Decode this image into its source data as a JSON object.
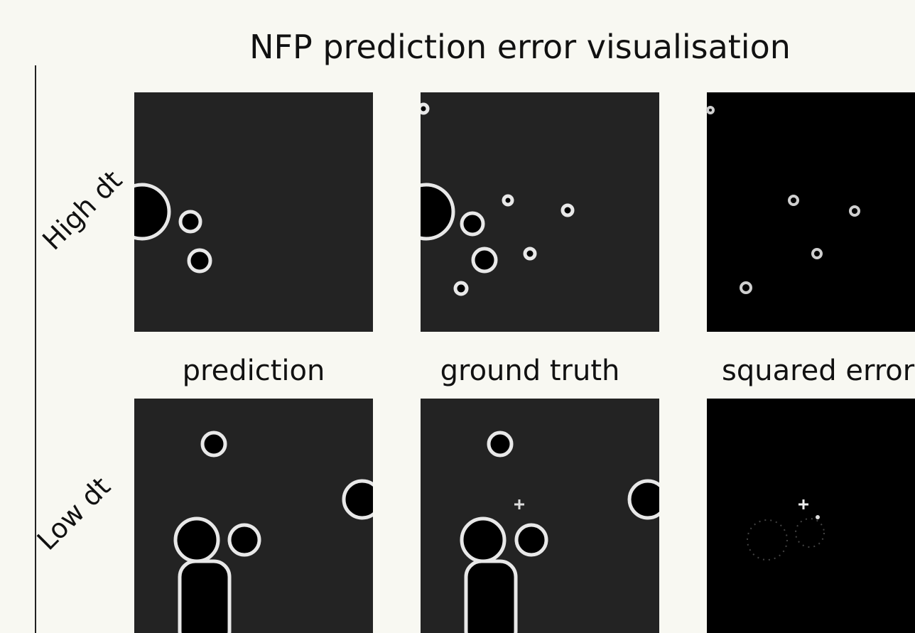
{
  "header": {
    "title": "NFP prediction error visualisation"
  },
  "rows": [
    "High dt",
    "Low dt"
  ],
  "columns": [
    "prediction",
    "ground truth",
    "squared error"
  ]
}
